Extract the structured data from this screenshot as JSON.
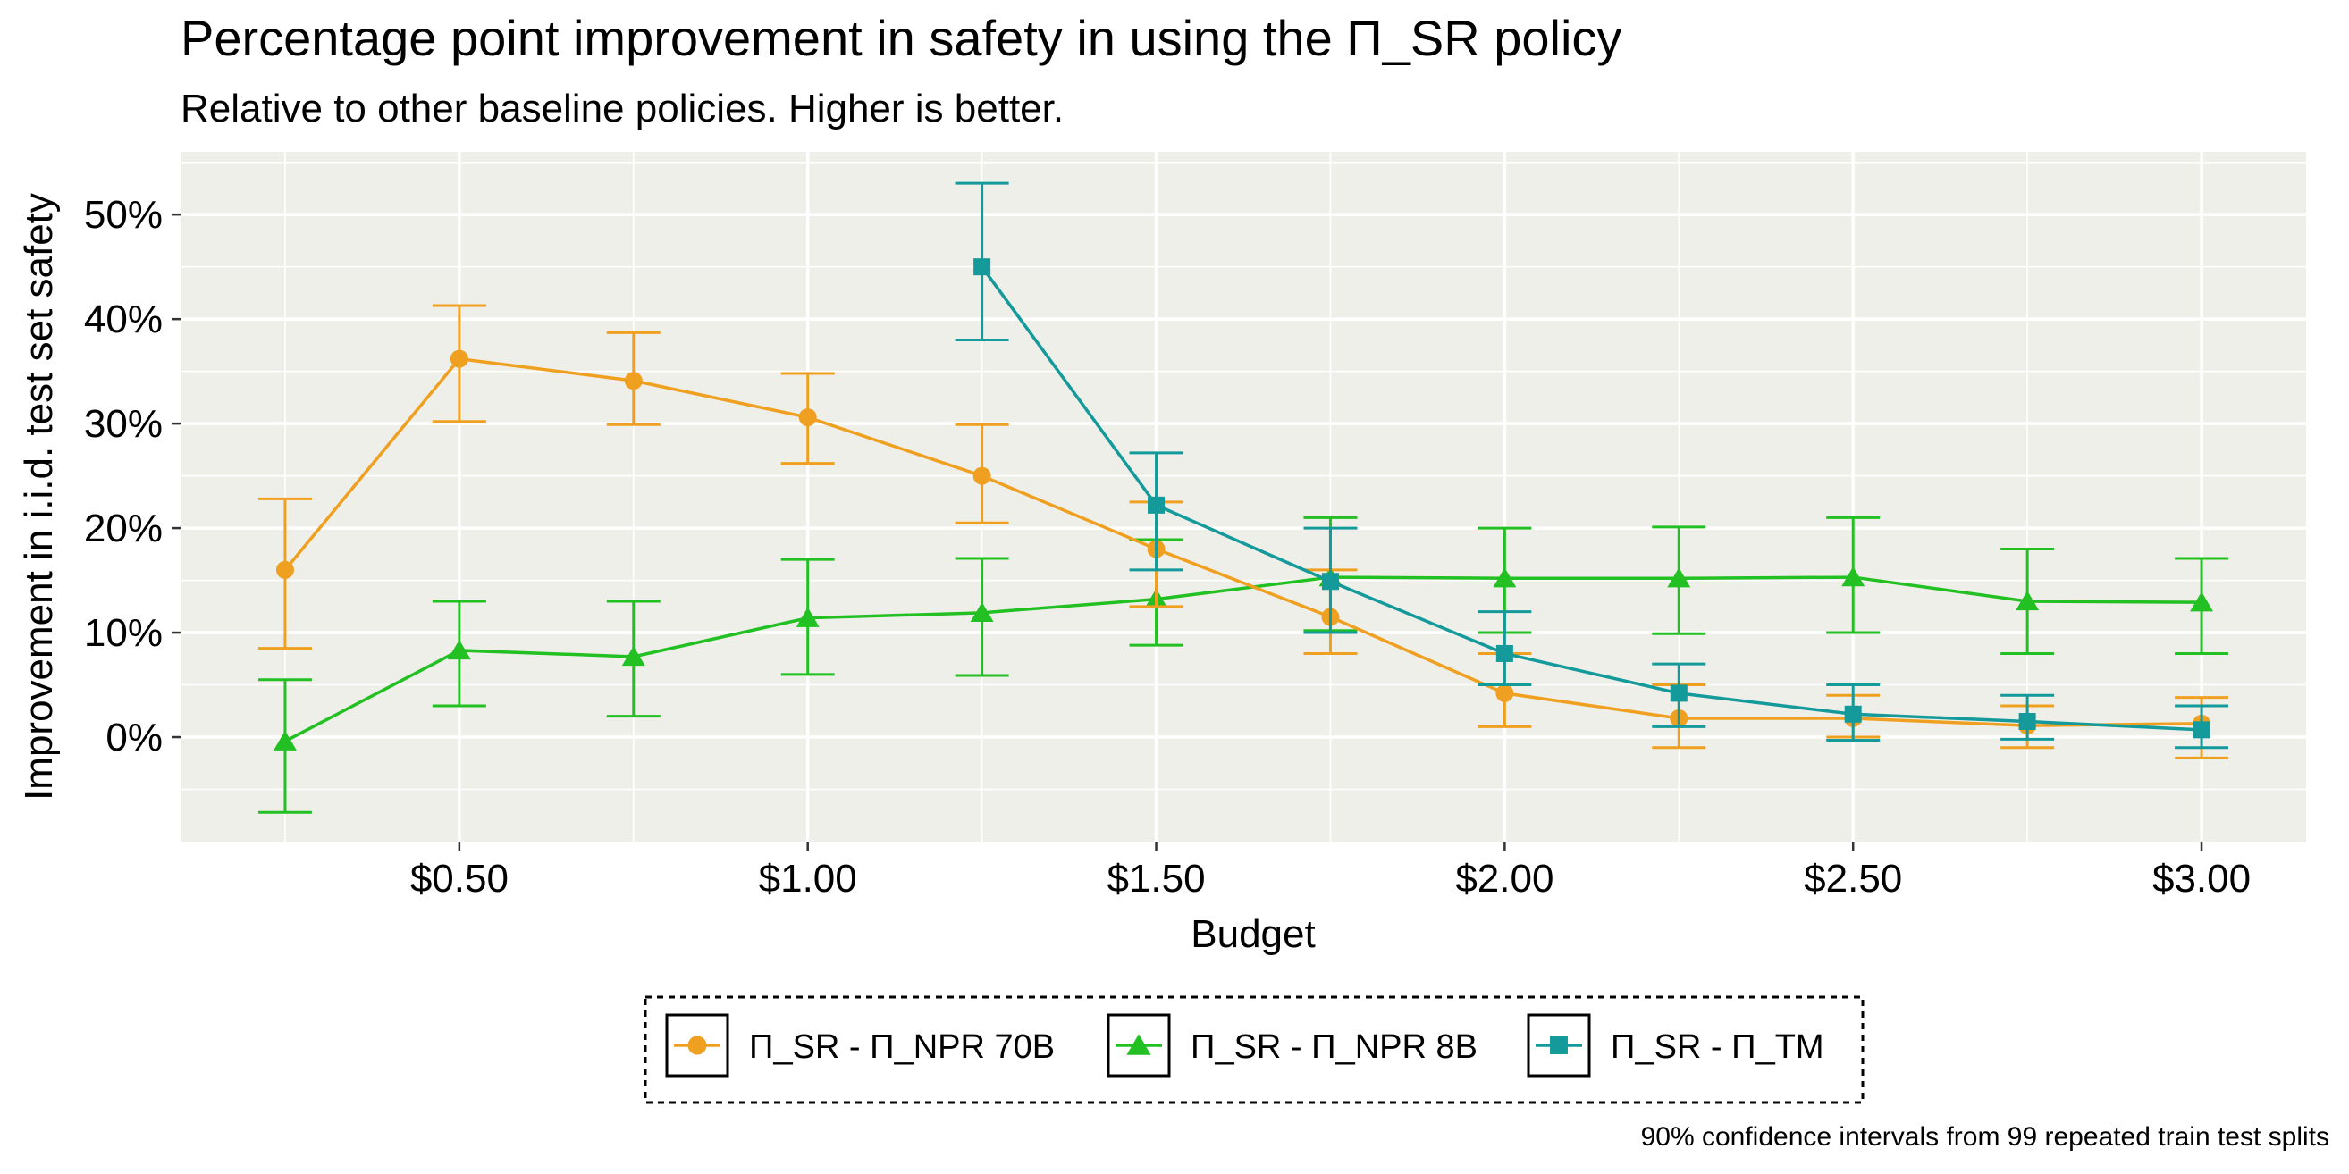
{
  "chart_data": {
    "type": "line",
    "title": "Percentage point improvement in safety in using the Π_SR policy",
    "subtitle": "Relative to other baseline policies. Higher is better.",
    "xlabel": "Budget",
    "ylabel": "Improvement in i.i.d. test set safety",
    "caption": "90% confidence intervals from 99 repeated train test splits",
    "x_tick_labels": [
      "$0.50",
      "$1.00",
      "$1.50",
      "$2.00",
      "$2.50",
      "$3.00"
    ],
    "x_ticks": [
      0.5,
      1.0,
      1.5,
      2.0,
      2.5,
      3.0
    ],
    "y_tick_labels": [
      "0%",
      "10%",
      "20%",
      "30%",
      "40%",
      "50%"
    ],
    "y_ticks": [
      0,
      10,
      20,
      30,
      40,
      50
    ],
    "xlim": [
      0.1,
      3.15
    ],
    "ylim": [
      -10,
      56
    ],
    "grid": true,
    "legend_position": "bottom",
    "series": [
      {
        "name": "Π_SR - Π_NPR 70B",
        "color": "#F0A020",
        "marker": "circle",
        "x": [
          0.25,
          0.5,
          0.75,
          1.0,
          1.25,
          1.5,
          1.75,
          2.0,
          2.25,
          2.5,
          2.75,
          3.0
        ],
        "y": [
          16.0,
          36.2,
          34.1,
          30.6,
          25.0,
          18.0,
          11.5,
          4.2,
          1.8,
          1.8,
          1.1,
          1.3
        ],
        "lower": [
          8.5,
          30.2,
          29.9,
          26.2,
          20.5,
          12.5,
          8.0,
          1.0,
          -1.0,
          0.0,
          -1.0,
          -2.0
        ],
        "upper": [
          22.8,
          41.3,
          38.7,
          34.8,
          29.9,
          22.5,
          16.0,
          8.0,
          5.0,
          4.0,
          3.0,
          3.8
        ]
      },
      {
        "name": "Π_SR - Π_NPR 8B",
        "color": "#22C022",
        "marker": "triangle",
        "x": [
          0.25,
          0.5,
          0.75,
          1.0,
          1.25,
          1.5,
          1.75,
          2.0,
          2.25,
          2.5,
          2.75,
          3.0
        ],
        "y": [
          -0.4,
          8.3,
          7.7,
          11.4,
          11.9,
          13.2,
          15.3,
          15.2,
          15.2,
          15.3,
          13.0,
          12.9
        ],
        "lower": [
          -7.2,
          3.0,
          2.0,
          6.0,
          5.9,
          8.8,
          10.2,
          10.0,
          9.9,
          10.0,
          8.0,
          8.0
        ],
        "upper": [
          5.5,
          13.0,
          13.0,
          17.0,
          17.1,
          18.9,
          21.0,
          20.0,
          20.1,
          21.0,
          18.0,
          17.1
        ]
      },
      {
        "name": "Π_SR - Π_TM",
        "color": "#149A9A",
        "marker": "square",
        "x": [
          1.25,
          1.5,
          1.75,
          2.0,
          2.25,
          2.5,
          2.75,
          3.0
        ],
        "y": [
          45.0,
          22.2,
          14.9,
          8.0,
          4.2,
          2.2,
          1.5,
          0.7
        ],
        "lower": [
          38.0,
          16.0,
          10.0,
          5.0,
          1.0,
          -0.3,
          -0.2,
          -1.0
        ],
        "upper": [
          53.0,
          27.2,
          20.0,
          12.0,
          7.0,
          5.0,
          4.0,
          3.0
        ]
      }
    ]
  }
}
